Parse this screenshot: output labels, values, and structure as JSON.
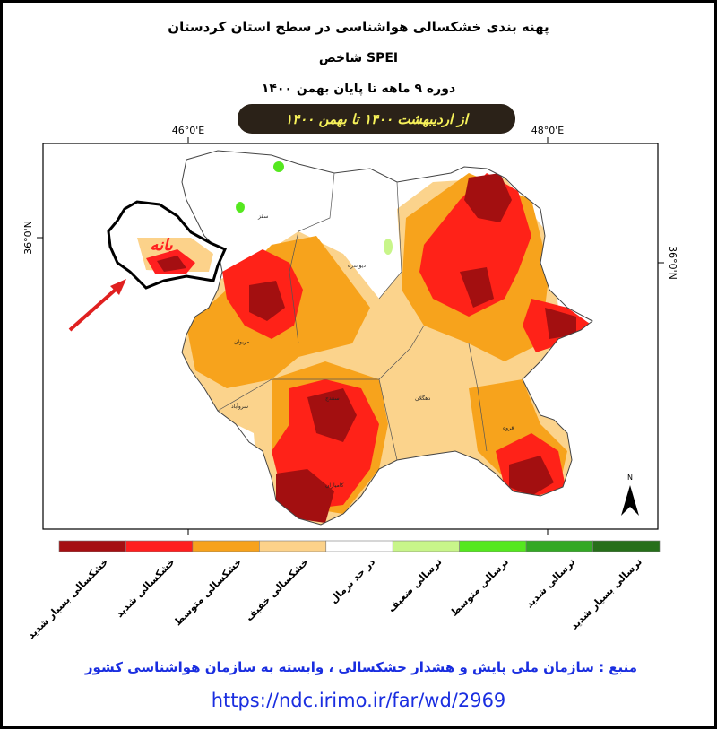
{
  "header": {
    "title": "پهنه بندی خشکسالی هواشناسی در سطح استان کردستان",
    "index": "شاخص SPEI",
    "period": "دوره ۹ ماهه تا پایان بهمن ۱۴۰۰",
    "banner": "از اردیبهشت ۱۴۰۰ تا بهمن ۱۴۰۰"
  },
  "map": {
    "lon_labels": [
      "46°0'E",
      "48°0'E"
    ],
    "lat_label": "36°0'N",
    "places": [
      "بانه",
      "سقز",
      "دیواندره",
      "مریوان",
      "سروآباد",
      "سنندج",
      "دهگلان",
      "قروه",
      "کامیاران"
    ],
    "north": "N"
  },
  "legend": [
    {
      "label": "خشکسالی بسیار شدید",
      "color": "#a50f12"
    },
    {
      "label": "خشکسالی شدید",
      "color": "#ff1f1f"
    },
    {
      "label": "خشکسالی متوسط",
      "color": "#f7a21c"
    },
    {
      "label": "خشکسالی خفیف",
      "color": "#fcd28a"
    },
    {
      "label": "در حد نرمال",
      "color": "#ffffff"
    },
    {
      "label": "ترسالی ضعیف",
      "color": "#c8f58a"
    },
    {
      "label": "ترسالی متوسط",
      "color": "#55e81f"
    },
    {
      "label": "ترسالی شدید",
      "color": "#33a825"
    },
    {
      "label": "ترسالی بسیار شدید",
      "color": "#266f1a"
    }
  ],
  "footer": {
    "source": "منبع : سازمان ملی پایش و هشدار خشکسالی ، وابسته به سازمان هواشناسی کشور",
    "url": "https://ndc.irimo.ir/far/wd/2969"
  }
}
